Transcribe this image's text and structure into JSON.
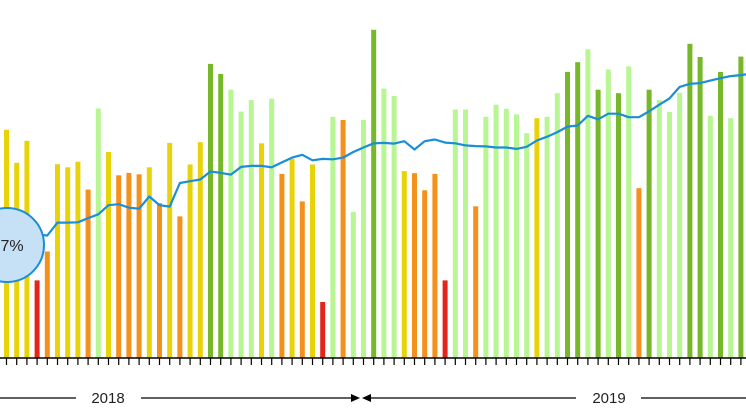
{
  "chart_data": {
    "type": "bar",
    "title": "",
    "xlabel": "",
    "ylabel": "",
    "ylim": [
      0,
      100
    ],
    "grid": false,
    "legend": "none",
    "badge": {
      "label": "7%"
    },
    "years": [
      {
        "label": "2018"
      },
      {
        "label": "2019"
      }
    ],
    "palette": {
      "red": "#e2261c",
      "orange": "#f4901c",
      "yellow": "#e8d20a",
      "lightgreen": "#b8f593",
      "green": "#76b82a",
      "line": "#1a8ed8",
      "badge_fill": "#c6e0f6",
      "badge_stroke": "#1a8ed8",
      "axis": "#000000"
    },
    "series": [
      {
        "type": "bar",
        "values": [
          65.6,
          56.1,
          62.4,
          22.3,
          30.6,
          55.7,
          54.8,
          56.4,
          48.4,
          71.7,
          59.2,
          52.5,
          53.2,
          52.8,
          54.8,
          44.5,
          61.8,
          40.7,
          55.6,
          62.0,
          84.5,
          81.6,
          77.1,
          70.8,
          74.1,
          61.7,
          74.5,
          52.9,
          57.2,
          45.0,
          55.6,
          16.1,
          69.3,
          68.4,
          42.0,
          68.4,
          94.3,
          77.4,
          75.3,
          53.7,
          53.1,
          48.2,
          52.9,
          22.3,
          71.4,
          71.4,
          43.6,
          69.3,
          72.8,
          71.6,
          70.0,
          64.6,
          68.9,
          69.3,
          76.1,
          82.2,
          85.0,
          88.7,
          77.1,
          82.9,
          76.1,
          83.8,
          48.8,
          77.1,
          74.1,
          70.7,
          76.2,
          90.3,
          86.5,
          69.6,
          82.2,
          68.9,
          86.6,
          68.9,
          75.2
        ],
        "colors": [
          "yellow",
          "yellow",
          "yellow",
          "red",
          "orange",
          "yellow",
          "yellow",
          "yellow",
          "orange",
          "lightgreen",
          "yellow",
          "orange",
          "orange",
          "orange",
          "yellow",
          "orange",
          "yellow",
          "orange",
          "yellow",
          "yellow",
          "green",
          "green",
          "lightgreen",
          "lightgreen",
          "lightgreen",
          "yellow",
          "lightgreen",
          "orange",
          "yellow",
          "orange",
          "yellow",
          "red",
          "lightgreen",
          "orange",
          "lightgreen",
          "lightgreen",
          "green",
          "lightgreen",
          "lightgreen",
          "yellow",
          "orange",
          "orange",
          "orange",
          "red",
          "lightgreen",
          "lightgreen",
          "orange",
          "lightgreen",
          "lightgreen",
          "lightgreen",
          "lightgreen",
          "lightgreen",
          "yellow",
          "lightgreen",
          "lightgreen",
          "green",
          "green",
          "lightgreen",
          "green",
          "lightgreen",
          "green",
          "lightgreen",
          "orange",
          "green",
          "lightgreen",
          "lightgreen",
          "lightgreen",
          "green",
          "green",
          "lightgreen",
          "green",
          "lightgreen",
          "green",
          "lightgreen",
          "lightgreen"
        ]
      },
      {
        "type": "line",
        "values": [
          33.0,
          29.9,
          31.1,
          35.5,
          35.2,
          38.9,
          38.9,
          39.0,
          40.2,
          41.3,
          43.9,
          44.2,
          43.2,
          42.9,
          46.4,
          43.9,
          43.5,
          50.3,
          50.8,
          51.3,
          53.6,
          53.2,
          52.7,
          54.9,
          55.2,
          55.2,
          54.8,
          56.2,
          57.6,
          58.4,
          56.8,
          57.2,
          57.1,
          57.6,
          59.2,
          60.5,
          61.7,
          61.8,
          61.6,
          62.3,
          59.9,
          62.3,
          62.8,
          61.9,
          61.7,
          61.1,
          60.9,
          60.8,
          60.5,
          60.5,
          60.1,
          60.7,
          62.5,
          63.6,
          64.9,
          66.5,
          66.8,
          69.6,
          68.6,
          70.2,
          70.2,
          69.2,
          69.2,
          70.9,
          72.8,
          74.6,
          77.9,
          78.8,
          79.0,
          79.7,
          80.4,
          81.0,
          81.3,
          81.7,
          82.0
        ]
      }
    ]
  }
}
